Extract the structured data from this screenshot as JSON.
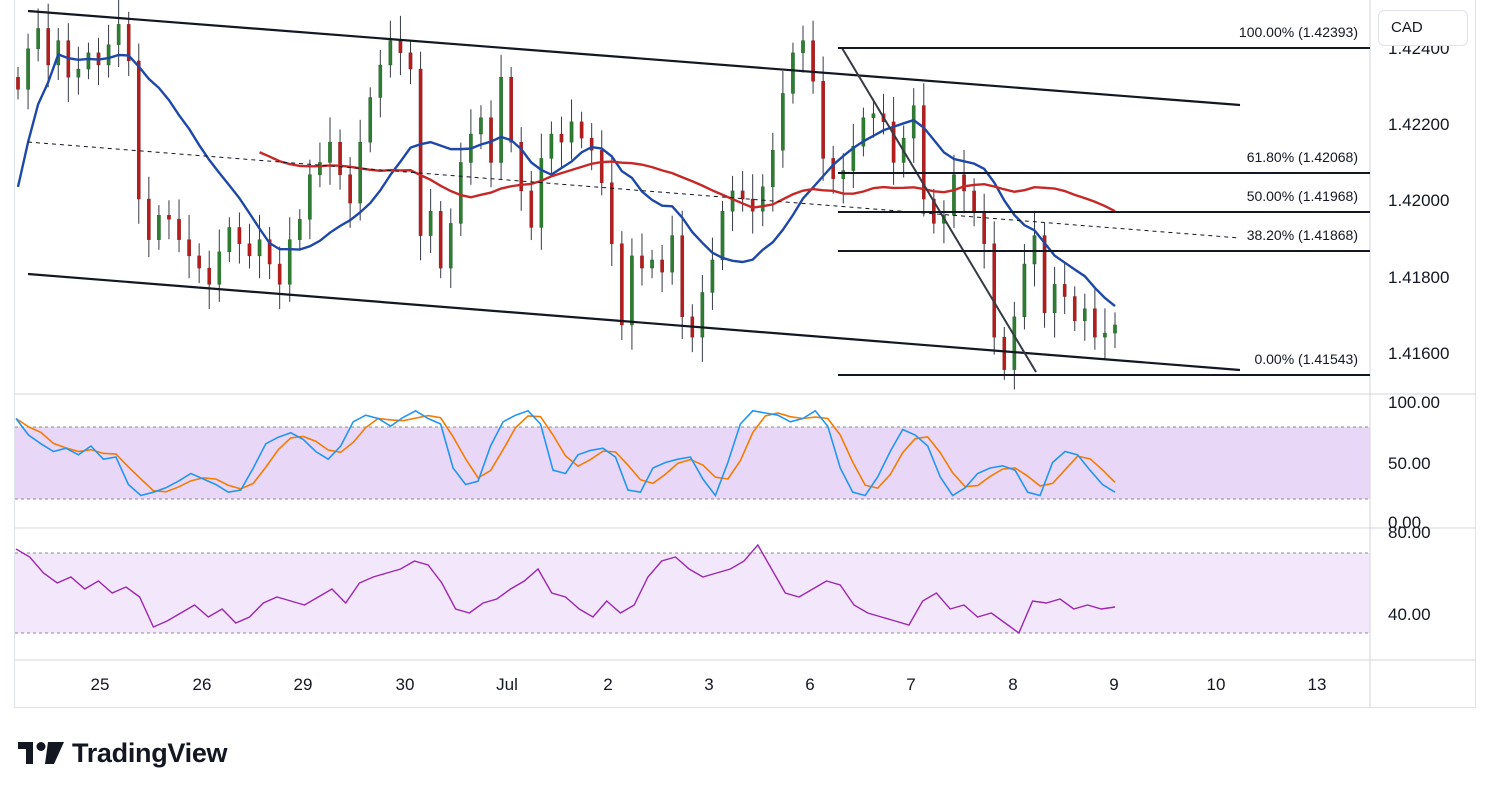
{
  "chart_data": {
    "type": "candlestick",
    "symbol_currency": "CAD",
    "x_axis": {
      "ticks": [
        "25",
        "26",
        "29",
        "30",
        "Jul",
        "2",
        "3",
        "6",
        "7",
        "8",
        "9",
        "10",
        "13"
      ]
    },
    "price_panel": {
      "y_range": [
        1.4151,
        1.4248
      ],
      "y_ticks": [
        "1.42400",
        "1.42200",
        "1.42000",
        "1.41800",
        "1.41600"
      ],
      "fibonacci": [
        {
          "level": "100.00%",
          "price": 1.42393,
          "label": "100.00% (1.42393)"
        },
        {
          "level": "61.80%",
          "price": 1.42068,
          "label": "61.80% (1.42068)"
        },
        {
          "level": "50.00%",
          "price": 1.41968,
          "label": "50.00% (1.41968)"
        },
        {
          "level": "38.20%",
          "price": 1.41868,
          "label": "38.20% (1.41868)"
        },
        {
          "level": "0.00%",
          "price": 1.41543,
          "label": "0.00% (1.41543)"
        }
      ],
      "ohlc_close_path": [
        1.4226,
        1.4236,
        1.4241,
        1.4232,
        1.4238,
        1.4229,
        1.4231,
        1.4235,
        1.4232,
        1.4237,
        1.4242,
        1.4233,
        1.4199,
        1.4189,
        1.4195,
        1.4194,
        1.4189,
        1.4185,
        1.4182,
        1.4178,
        1.4186,
        1.4192,
        1.4188,
        1.4185,
        1.4189,
        1.4183,
        1.4178,
        1.4189,
        1.4194,
        1.4205,
        1.4208,
        1.4213,
        1.4205,
        1.4198,
        1.4213,
        1.4224,
        1.4232,
        1.4238,
        1.4235,
        1.4231,
        1.419,
        1.4196,
        1.4182,
        1.4193,
        1.4208,
        1.4215,
        1.4219,
        1.4208,
        1.4229,
        1.4213,
        1.4201,
        1.4192,
        1.4209,
        1.4215,
        1.4213,
        1.4218,
        1.4214,
        1.4211,
        1.4203,
        1.4188,
        1.4168,
        1.4185,
        1.4182,
        1.4184,
        1.4181,
        1.419,
        1.417,
        1.4165,
        1.4176,
        1.4184,
        1.4196,
        1.4201,
        1.4199,
        1.4196,
        1.4202,
        1.4211,
        1.4225,
        1.4235,
        1.4238,
        1.4228,
        1.4209,
        1.4204,
        1.4206,
        1.4212,
        1.4219,
        1.422,
        1.4218,
        1.4208,
        1.4214,
        1.4222,
        1.4199,
        1.4193,
        1.4195,
        1.4205,
        1.4201,
        1.4196,
        1.4188,
        1.4165,
        1.4157,
        1.417,
        1.4183,
        1.419,
        1.4171,
        1.4178,
        1.4175,
        1.4169,
        1.4172,
        1.4165,
        1.4166,
        1.4168
      ]
    },
    "moving_averages": [
      {
        "color": "#1e48a8"
      },
      {
        "color": "#c62828"
      }
    ],
    "stochastic_panel": {
      "y_ticks": [
        "100.00",
        "50.00",
        "0.00"
      ],
      "bands": [
        80,
        20
      ],
      "k_values": [
        85,
        70,
        62,
        55,
        58,
        52,
        60,
        48,
        50,
        25,
        15,
        18,
        22,
        28,
        35,
        30,
        25,
        18,
        20,
        40,
        62,
        68,
        72,
        66,
        55,
        48,
        60,
        82,
        88,
        85,
        78,
        86,
        92,
        85,
        80,
        40,
        25,
        28,
        60,
        82,
        88,
        92,
        80,
        38,
        35,
        52,
        56,
        58,
        50,
        20,
        18,
        40,
        45,
        48,
        50,
        30,
        15,
        45,
        80,
        92,
        90,
        88,
        82,
        85,
        92,
        78,
        40,
        18,
        15,
        32,
        55,
        75,
        70,
        60,
        32,
        15,
        22,
        35,
        40,
        42,
        38,
        18,
        15,
        45,
        55,
        52,
        38,
        25,
        18
      ],
      "d_color": "#f57c00",
      "k_color": "#2196f3"
    },
    "rsi_panel": {
      "y_ticks": [
        "80.00",
        "40.00"
      ],
      "bands": [
        70,
        30
      ],
      "values": [
        72,
        68,
        60,
        55,
        58,
        52,
        56,
        50,
        53,
        48,
        33,
        36,
        40,
        44,
        38,
        42,
        35,
        38,
        45,
        48,
        46,
        44,
        48,
        52,
        45,
        55,
        58,
        60,
        62,
        66,
        64,
        55,
        42,
        40,
        45,
        47,
        52,
        56,
        62,
        50,
        48,
        42,
        38,
        46,
        40,
        44,
        58,
        66,
        68,
        62,
        58,
        60,
        62,
        66,
        74,
        62,
        50,
        48,
        52,
        56,
        54,
        44,
        40,
        38,
        36,
        34,
        46,
        50,
        42,
        44,
        38,
        40,
        35,
        30,
        46,
        45,
        47,
        42,
        44,
        42,
        43
      ]
    }
  },
  "ui": {
    "currency": "CAD",
    "brand_name": "TradingView"
  }
}
